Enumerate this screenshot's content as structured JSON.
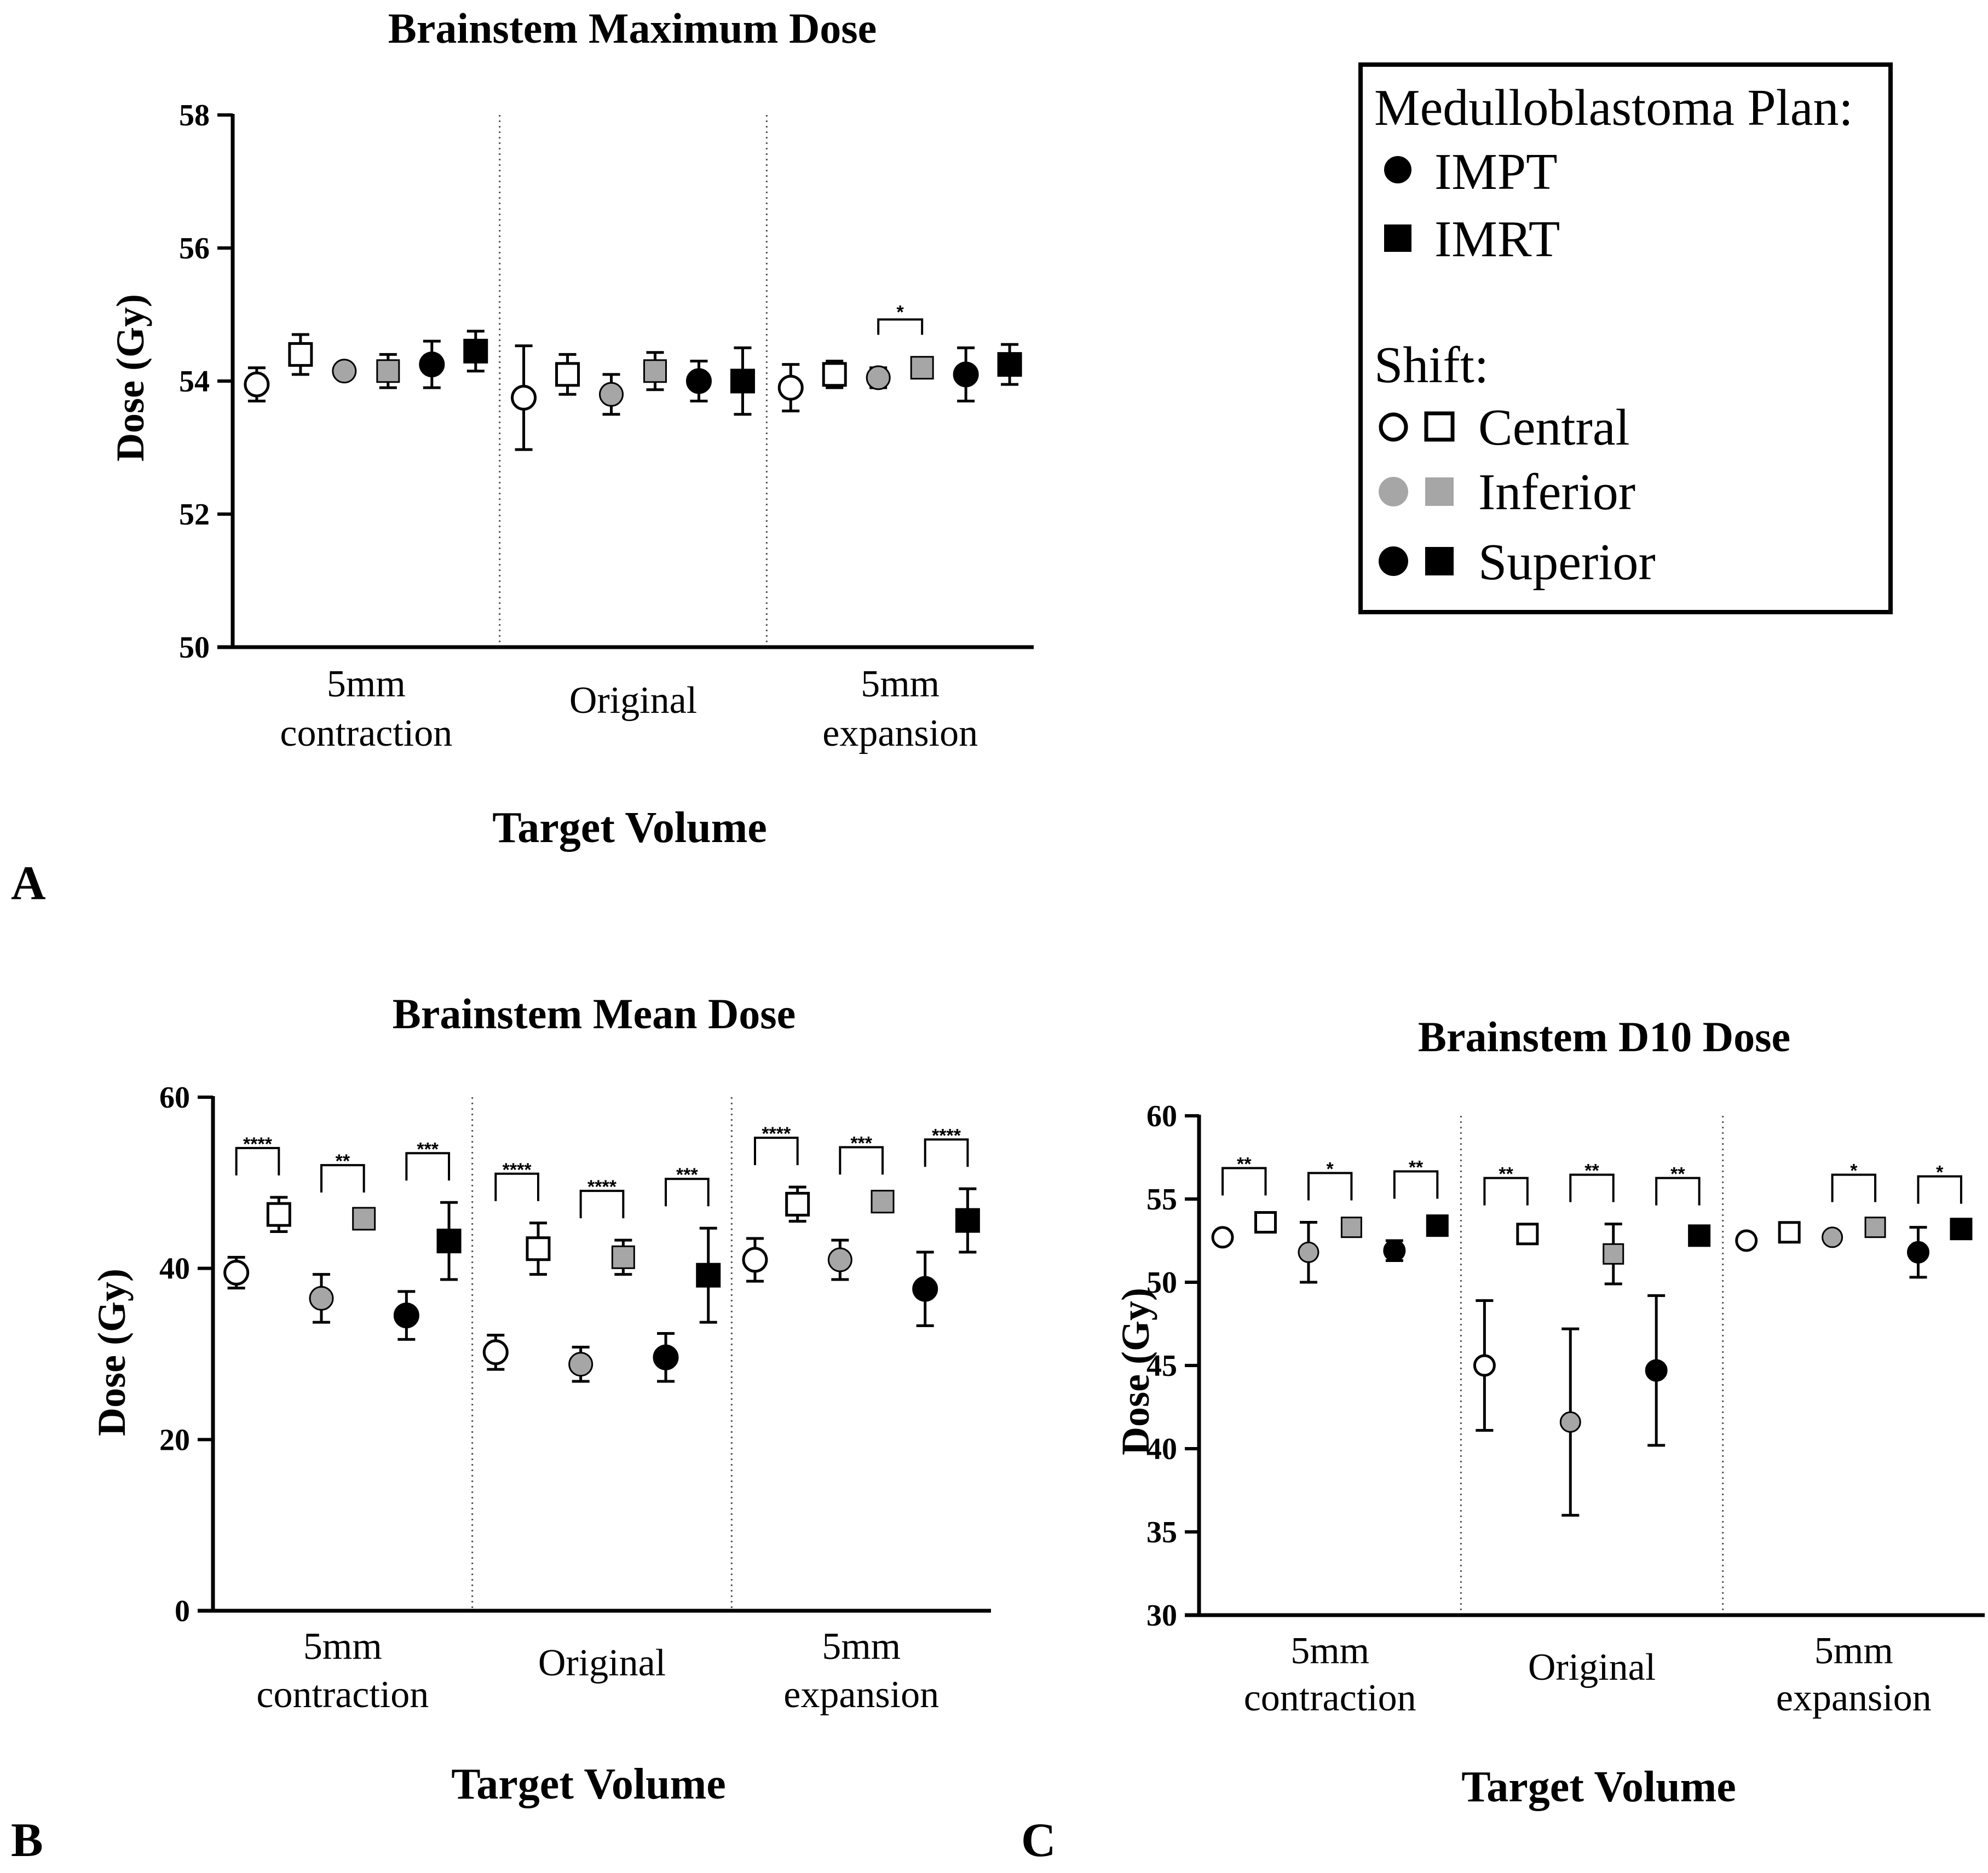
{
  "chart_data": [
    {
      "panel": "A",
      "type": "scatter",
      "title": "Brainstem Maximum Dose",
      "xlabel": "Target Volume",
      "ylabel": "Dose (Gy)",
      "ylim": [
        50,
        58
      ],
      "yticks": [
        50,
        52,
        54,
        56,
        58
      ],
      "categories": [
        [
          "5mm",
          "contraction"
        ],
        [
          "Original"
        ],
        [
          "5mm",
          "expansion"
        ]
      ],
      "points": [
        {
          "group": 0,
          "slot": 0,
          "plan": "IMPT",
          "shift": "Central",
          "mean": 53.95,
          "err": 0.25
        },
        {
          "group": 0,
          "slot": 1,
          "plan": "IMRT",
          "shift": "Central",
          "mean": 54.4,
          "err": 0.3
        },
        {
          "group": 0,
          "slot": 2,
          "plan": "IMPT",
          "shift": "Inferior",
          "mean": 54.15,
          "err": 0.05
        },
        {
          "group": 0,
          "slot": 3,
          "plan": "IMRT",
          "shift": "Inferior",
          "mean": 54.15,
          "err": 0.25
        },
        {
          "group": 0,
          "slot": 4,
          "plan": "IMPT",
          "shift": "Superior",
          "mean": 54.25,
          "err": 0.35
        },
        {
          "group": 0,
          "slot": 5,
          "plan": "IMRT",
          "shift": "Superior",
          "mean": 54.45,
          "err": 0.3
        },
        {
          "group": 1,
          "slot": 0,
          "plan": "IMPT",
          "shift": "Central",
          "mean": 53.75,
          "err": 0.78
        },
        {
          "group": 1,
          "slot": 1,
          "plan": "IMRT",
          "shift": "Central",
          "mean": 54.1,
          "err": 0.3
        },
        {
          "group": 1,
          "slot": 2,
          "plan": "IMPT",
          "shift": "Inferior",
          "mean": 53.8,
          "err": 0.3
        },
        {
          "group": 1,
          "slot": 3,
          "plan": "IMRT",
          "shift": "Inferior",
          "mean": 54.15,
          "err": 0.28
        },
        {
          "group": 1,
          "slot": 4,
          "plan": "IMPT",
          "shift": "Superior",
          "mean": 54.0,
          "err": 0.3
        },
        {
          "group": 1,
          "slot": 5,
          "plan": "IMRT",
          "shift": "Superior",
          "mean": 54.0,
          "err": 0.5
        },
        {
          "group": 2,
          "slot": 0,
          "plan": "IMPT",
          "shift": "Central",
          "mean": 53.9,
          "err": 0.35
        },
        {
          "group": 2,
          "slot": 1,
          "plan": "IMRT",
          "shift": "Central",
          "mean": 54.1,
          "err": 0.2
        },
        {
          "group": 2,
          "slot": 2,
          "plan": "IMPT",
          "shift": "Inferior",
          "mean": 54.05,
          "err": 0.15
        },
        {
          "group": 2,
          "slot": 3,
          "plan": "IMRT",
          "shift": "Inferior",
          "mean": 54.2,
          "err": 0.1
        },
        {
          "group": 2,
          "slot": 4,
          "plan": "IMPT",
          "shift": "Superior",
          "mean": 54.1,
          "err": 0.4
        },
        {
          "group": 2,
          "slot": 5,
          "plan": "IMRT",
          "shift": "Superior",
          "mean": 54.25,
          "err": 0.3
        }
      ],
      "significance": [
        {
          "group": 2,
          "from": 2,
          "to": 3,
          "label": "*"
        }
      ]
    },
    {
      "panel": "B",
      "type": "scatter",
      "title": "Brainstem Mean Dose",
      "xlabel": "Target Volume",
      "ylabel": "Dose (Gy)",
      "ylim": [
        0,
        60
      ],
      "yticks": [
        0,
        20,
        40,
        60
      ],
      "categories": [
        [
          "5mm",
          "contraction"
        ],
        [
          "Original"
        ],
        [
          "5mm",
          "expansion"
        ]
      ],
      "points": [
        {
          "group": 0,
          "slot": 0,
          "plan": "IMPT",
          "shift": "Central",
          "mean": 39.5,
          "err": 1.8
        },
        {
          "group": 0,
          "slot": 1,
          "plan": "IMRT",
          "shift": "Central",
          "mean": 46.3,
          "err": 2.0
        },
        {
          "group": 0,
          "slot": 2,
          "plan": "IMPT",
          "shift": "Inferior",
          "mean": 36.5,
          "err": 2.8
        },
        {
          "group": 0,
          "slot": 3,
          "plan": "IMRT",
          "shift": "Inferior",
          "mean": 45.8,
          "err": 0.5
        },
        {
          "group": 0,
          "slot": 4,
          "plan": "IMPT",
          "shift": "Superior",
          "mean": 34.5,
          "err": 2.8
        },
        {
          "group": 0,
          "slot": 5,
          "plan": "IMRT",
          "shift": "Superior",
          "mean": 43.2,
          "err": 4.5
        },
        {
          "group": 1,
          "slot": 0,
          "plan": "IMPT",
          "shift": "Central",
          "mean": 30.2,
          "err": 2.0
        },
        {
          "group": 1,
          "slot": 1,
          "plan": "IMRT",
          "shift": "Central",
          "mean": 42.3,
          "err": 3.0
        },
        {
          "group": 1,
          "slot": 2,
          "plan": "IMPT",
          "shift": "Inferior",
          "mean": 28.8,
          "err": 2.0
        },
        {
          "group": 1,
          "slot": 3,
          "plan": "IMRT",
          "shift": "Inferior",
          "mean": 41.3,
          "err": 2.0
        },
        {
          "group": 1,
          "slot": 4,
          "plan": "IMPT",
          "shift": "Superior",
          "mean": 29.6,
          "err": 2.8
        },
        {
          "group": 1,
          "slot": 5,
          "plan": "IMRT",
          "shift": "Superior",
          "mean": 39.2,
          "err": 5.5
        },
        {
          "group": 2,
          "slot": 0,
          "plan": "IMPT",
          "shift": "Central",
          "mean": 41.0,
          "err": 2.5
        },
        {
          "group": 2,
          "slot": 1,
          "plan": "IMRT",
          "shift": "Central",
          "mean": 47.5,
          "err": 2.0
        },
        {
          "group": 2,
          "slot": 2,
          "plan": "IMPT",
          "shift": "Inferior",
          "mean": 41.0,
          "err": 2.3
        },
        {
          "group": 2,
          "slot": 3,
          "plan": "IMRT",
          "shift": "Inferior",
          "mean": 47.8,
          "err": 0.6
        },
        {
          "group": 2,
          "slot": 4,
          "plan": "IMPT",
          "shift": "Superior",
          "mean": 37.6,
          "err": 4.3
        },
        {
          "group": 2,
          "slot": 5,
          "plan": "IMRT",
          "shift": "Superior",
          "mean": 45.6,
          "err": 3.7
        }
      ],
      "significance": [
        {
          "group": 0,
          "from": 0,
          "to": 1,
          "label": "****"
        },
        {
          "group": 0,
          "from": 2,
          "to": 3,
          "label": "**"
        },
        {
          "group": 0,
          "from": 4,
          "to": 5,
          "label": "***"
        },
        {
          "group": 1,
          "from": 0,
          "to": 1,
          "label": "****"
        },
        {
          "group": 1,
          "from": 2,
          "to": 3,
          "label": "****"
        },
        {
          "group": 1,
          "from": 4,
          "to": 5,
          "label": "***"
        },
        {
          "group": 2,
          "from": 0,
          "to": 1,
          "label": "****"
        },
        {
          "group": 2,
          "from": 2,
          "to": 3,
          "label": "***"
        },
        {
          "group": 2,
          "from": 4,
          "to": 5,
          "label": "****"
        }
      ]
    },
    {
      "panel": "C",
      "type": "scatter",
      "title": "Brainstem D10 Dose",
      "xlabel": "Target Volume",
      "ylabel": "Dose (Gy)",
      "ylim": [
        30,
        60
      ],
      "yticks": [
        30,
        35,
        40,
        45,
        50,
        55,
        60
      ],
      "categories": [
        [
          "5mm",
          "contraction"
        ],
        [
          "Original"
        ],
        [
          "5mm",
          "expansion"
        ]
      ],
      "points": [
        {
          "group": 0,
          "slot": 0,
          "plan": "IMPT",
          "shift": "Central",
          "mean": 52.7,
          "err": 0.3
        },
        {
          "group": 0,
          "slot": 1,
          "plan": "IMRT",
          "shift": "Central",
          "mean": 53.6,
          "err": 0.3
        },
        {
          "group": 0,
          "slot": 2,
          "plan": "IMPT",
          "shift": "Inferior",
          "mean": 51.8,
          "err": 1.8
        },
        {
          "group": 0,
          "slot": 3,
          "plan": "IMRT",
          "shift": "Inferior",
          "mean": 53.3,
          "err": 0.3
        },
        {
          "group": 0,
          "slot": 4,
          "plan": "IMPT",
          "shift": "Superior",
          "mean": 51.9,
          "err": 0.6
        },
        {
          "group": 0,
          "slot": 5,
          "plan": "IMRT",
          "shift": "Superior",
          "mean": 53.4,
          "err": 0.3
        },
        {
          "group": 1,
          "slot": 0,
          "plan": "IMPT",
          "shift": "Central",
          "mean": 45.0,
          "err": 3.9
        },
        {
          "group": 1,
          "slot": 1,
          "plan": "IMRT",
          "shift": "Central",
          "mean": 52.9,
          "err": 0.4
        },
        {
          "group": 1,
          "slot": 2,
          "plan": "IMPT",
          "shift": "Inferior",
          "mean": 41.6,
          "err": 5.6
        },
        {
          "group": 1,
          "slot": 3,
          "plan": "IMRT",
          "shift": "Inferior",
          "mean": 51.7,
          "err": 1.8
        },
        {
          "group": 1,
          "slot": 4,
          "plan": "IMPT",
          "shift": "Superior",
          "mean": 44.7,
          "err": 4.5
        },
        {
          "group": 1,
          "slot": 5,
          "plan": "IMRT",
          "shift": "Superior",
          "mean": 52.8,
          "err": 0.5
        },
        {
          "group": 2,
          "slot": 0,
          "plan": "IMPT",
          "shift": "Central",
          "mean": 52.5,
          "err": 0.3
        },
        {
          "group": 2,
          "slot": 1,
          "plan": "IMRT",
          "shift": "Central",
          "mean": 53.0,
          "err": 0.2
        },
        {
          "group": 2,
          "slot": 2,
          "plan": "IMPT",
          "shift": "Inferior",
          "mean": 52.7,
          "err": 0.3
        },
        {
          "group": 2,
          "slot": 3,
          "plan": "IMRT",
          "shift": "Inferior",
          "mean": 53.3,
          "err": 0.2
        },
        {
          "group": 2,
          "slot": 4,
          "plan": "IMPT",
          "shift": "Superior",
          "mean": 51.8,
          "err": 1.5
        },
        {
          "group": 2,
          "slot": 5,
          "plan": "IMRT",
          "shift": "Superior",
          "mean": 53.2,
          "err": 0.2
        }
      ],
      "significance": [
        {
          "group": 0,
          "from": 0,
          "to": 1,
          "label": "**"
        },
        {
          "group": 0,
          "from": 2,
          "to": 3,
          "label": "*"
        },
        {
          "group": 0,
          "from": 4,
          "to": 5,
          "label": "**"
        },
        {
          "group": 1,
          "from": 0,
          "to": 1,
          "label": "**"
        },
        {
          "group": 1,
          "from": 2,
          "to": 3,
          "label": "**"
        },
        {
          "group": 1,
          "from": 4,
          "to": 5,
          "label": "**"
        },
        {
          "group": 2,
          "from": 2,
          "to": 3,
          "label": "*"
        },
        {
          "group": 2,
          "from": 4,
          "to": 5,
          "label": "*"
        }
      ]
    }
  ],
  "legend": {
    "plan_header": "Medulloblastoma Plan:",
    "plans": [
      {
        "label": "IMPT",
        "marker": "circle"
      },
      {
        "label": "IMRT",
        "marker": "square"
      }
    ],
    "shift_header": "Shift:",
    "shifts": [
      {
        "label": "Central",
        "color": "#ffffff"
      },
      {
        "label": "Inferior",
        "color": "#a6a6a6"
      },
      {
        "label": "Superior",
        "color": "#000000"
      }
    ]
  },
  "colors": {
    "Central": "#ffffff",
    "Inferior": "#a6a6a6",
    "Superior": "#000000",
    "outline": "#000000"
  }
}
